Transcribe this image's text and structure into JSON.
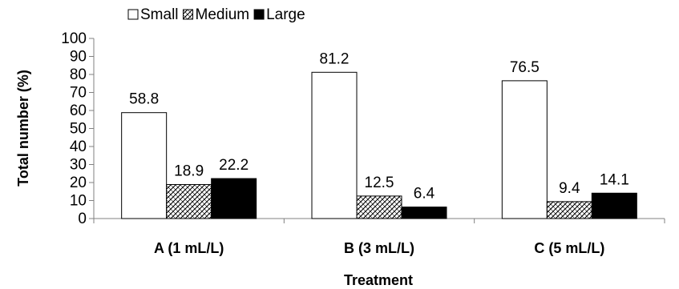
{
  "chart_data": {
    "type": "bar",
    "title": "",
    "xlabel": "Treatment",
    "ylabel": "Total number (%)",
    "ylim": [
      0,
      100
    ],
    "yticks": [
      0,
      10,
      20,
      30,
      40,
      50,
      60,
      70,
      80,
      90,
      100
    ],
    "categories": [
      "A (1 mL/L)",
      "B (3 mL/L)",
      "C (5 mL/L)"
    ],
    "series": [
      {
        "name": "Small",
        "values": [
          58.8,
          81.2,
          76.5
        ],
        "fill": "white",
        "color": "#ffffff"
      },
      {
        "name": "Medium",
        "values": [
          18.9,
          12.5,
          9.4
        ],
        "fill": "crosshatch",
        "color": "#808080"
      },
      {
        "name": "Large",
        "values": [
          22.2,
          6.4,
          14.1
        ],
        "fill": "solid",
        "color": "#000000"
      }
    ],
    "data_labels": [
      [
        "58.8",
        "81.2",
        "76.5"
      ],
      [
        "18.9",
        "12.5",
        "9.4"
      ],
      [
        "22.2",
        "6.4",
        "14.1"
      ]
    ],
    "legend_position": "top-left",
    "grid": false
  }
}
